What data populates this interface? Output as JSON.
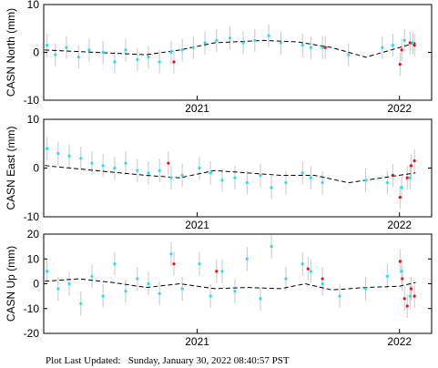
{
  "footer": {
    "label": "Plot Last Updated:",
    "timestamp": "Sunday, January 30, 2022 08:40:57 PST"
  },
  "style": {
    "point_color": "#22e0f0",
    "recent_color": "#e81010",
    "errorbar_color": "#c8c8c8",
    "trend_color": "#000000"
  },
  "chart_data": [
    {
      "type": "scatter",
      "ylabel": "CASN North (mm)",
      "xlim": [
        "2020-03-30",
        "2022-02-28"
      ],
      "ylim": [
        -10,
        10
      ],
      "yticks": [
        -10,
        0,
        10
      ],
      "xticks": [
        {
          "date": "2021-01-01",
          "label": "2021"
        },
        {
          "date": "2022-01-01",
          "label": "2022"
        }
      ],
      "grid": false,
      "trend": [
        [
          "2020-04-01",
          0.5
        ],
        [
          "2020-07-01",
          0.0
        ],
        [
          "2020-10-01",
          -0.5
        ],
        [
          "2020-12-01",
          0.5
        ],
        [
          "2021-02-01",
          2.0
        ],
        [
          "2021-05-01",
          2.5
        ],
        [
          "2021-07-01",
          2.2
        ],
        [
          "2021-09-01",
          1.0
        ],
        [
          "2021-11-01",
          -1.0
        ],
        [
          "2022-01-01",
          1.0
        ],
        [
          "2022-01-30",
          2.0
        ]
      ],
      "series_points": [
        [
          "2020-04-05",
          1.5
        ],
        [
          "2020-04-20",
          -0.5
        ],
        [
          "2020-05-10",
          1.0
        ],
        [
          "2020-06-01",
          -1.0
        ],
        [
          "2020-06-20",
          0.5
        ],
        [
          "2020-07-15",
          0.0
        ],
        [
          "2020-08-05",
          -2.0
        ],
        [
          "2020-08-25",
          0.5
        ],
        [
          "2020-09-15",
          -1.5
        ],
        [
          "2020-10-05",
          -1.0
        ],
        [
          "2020-10-25",
          -2.0
        ],
        [
          "2020-11-15",
          0.0
        ],
        [
          "2020-12-05",
          0.5
        ],
        [
          "2020-12-25",
          1.0
        ],
        [
          "2021-01-15",
          2.0
        ],
        [
          "2021-02-05",
          2.5
        ],
        [
          "2021-03-01",
          3.0
        ],
        [
          "2021-03-25",
          2.0
        ],
        [
          "2021-04-15",
          2.5
        ],
        [
          "2021-05-10",
          3.5
        ],
        [
          "2021-06-01",
          2.0
        ],
        [
          "2021-07-10",
          1.5
        ],
        [
          "2021-07-25",
          1.0
        ],
        [
          "2021-08-15",
          1.0
        ],
        [
          "2021-10-01",
          -0.5
        ],
        [
          "2021-12-01",
          1.0
        ],
        [
          "2021-12-20",
          1.5
        ],
        [
          "2022-01-10",
          2.5
        ],
        [
          "2022-01-25",
          2.0
        ]
      ],
      "recent_points": [
        [
          "2020-11-20",
          -2.0
        ],
        [
          "2021-08-20",
          1.0
        ],
        [
          "2022-01-02",
          -2.5
        ],
        [
          "2022-01-05",
          0.5
        ],
        [
          "2022-01-20",
          2.0
        ],
        [
          "2022-01-28",
          1.5
        ]
      ]
    },
    {
      "type": "scatter",
      "ylabel": "CASN East (mm)",
      "xlim": [
        "2020-03-30",
        "2022-02-28"
      ],
      "ylim": [
        -10,
        10
      ],
      "yticks": [
        -10,
        0,
        10
      ],
      "xticks": [
        {
          "date": "2021-01-01",
          "label": "2021"
        },
        {
          "date": "2022-01-01",
          "label": "2022"
        }
      ],
      "grid": false,
      "trend": [
        [
          "2020-04-01",
          0.5
        ],
        [
          "2020-07-01",
          -0.5
        ],
        [
          "2020-10-01",
          -1.5
        ],
        [
          "2020-12-01",
          -2.0
        ],
        [
          "2021-02-01",
          -0.5
        ],
        [
          "2021-04-01",
          -1.0
        ],
        [
          "2021-06-01",
          -1.5
        ],
        [
          "2021-08-01",
          -1.5
        ],
        [
          "2021-10-01",
          -3.0
        ],
        [
          "2021-12-01",
          -2.0
        ],
        [
          "2022-01-30",
          -1.0
        ]
      ],
      "series_points": [
        [
          "2020-04-05",
          4.0
        ],
        [
          "2020-04-25",
          3.0
        ],
        [
          "2020-05-15",
          2.5
        ],
        [
          "2020-06-05",
          2.0
        ],
        [
          "2020-06-25",
          1.0
        ],
        [
          "2020-07-15",
          0.5
        ],
        [
          "2020-08-05",
          0.0
        ],
        [
          "2020-08-25",
          1.0
        ],
        [
          "2020-09-15",
          -0.5
        ],
        [
          "2020-10-05",
          -1.0
        ],
        [
          "2020-10-25",
          -0.5
        ],
        [
          "2020-11-15",
          -2.0
        ],
        [
          "2020-12-05",
          -1.5
        ],
        [
          "2021-01-05",
          0.0
        ],
        [
          "2021-01-25",
          -1.0
        ],
        [
          "2021-02-15",
          -2.5
        ],
        [
          "2021-03-10",
          -2.0
        ],
        [
          "2021-04-01",
          -3.0
        ],
        [
          "2021-04-25",
          -1.5
        ],
        [
          "2021-05-15",
          -4.0
        ],
        [
          "2021-06-10",
          -3.0
        ],
        [
          "2021-07-10",
          -1.0
        ],
        [
          "2021-07-25",
          -2.0
        ],
        [
          "2021-08-15",
          -3.0
        ],
        [
          "2021-11-01",
          -2.5
        ],
        [
          "2021-12-10",
          -3.0
        ],
        [
          "2022-01-05",
          -4.0
        ],
        [
          "2022-01-20",
          -2.0
        ]
      ],
      "recent_points": [
        [
          "2020-11-10",
          1.0
        ],
        [
          "2021-12-20",
          -1.5
        ],
        [
          "2022-01-02",
          -6.0
        ],
        [
          "2022-01-15",
          -2.0
        ],
        [
          "2022-01-22",
          0.5
        ],
        [
          "2022-01-28",
          1.5
        ]
      ]
    },
    {
      "type": "scatter",
      "ylabel": "CASN Up (mm)",
      "xlim": [
        "2020-03-30",
        "2022-02-28"
      ],
      "ylim": [
        -20,
        20
      ],
      "yticks": [
        -20,
        -10,
        0,
        10,
        20
      ],
      "xticks": [
        {
          "date": "2021-01-01",
          "label": "2021"
        },
        {
          "date": "2022-01-01",
          "label": "2022"
        }
      ],
      "grid": false,
      "trend": [
        [
          "2020-04-01",
          1.0
        ],
        [
          "2020-06-01",
          2.0
        ],
        [
          "2020-08-01",
          0.5
        ],
        [
          "2020-10-01",
          -1.5
        ],
        [
          "2020-12-01",
          0.0
        ],
        [
          "2021-02-01",
          -2.0
        ],
        [
          "2021-04-01",
          -1.5
        ],
        [
          "2021-06-01",
          -2.0
        ],
        [
          "2021-07-15",
          0.0
        ],
        [
          "2021-09-01",
          -2.5
        ],
        [
          "2021-11-01",
          -1.5
        ],
        [
          "2022-01-01",
          -1.0
        ],
        [
          "2022-01-30",
          0.5
        ]
      ],
      "series_points": [
        [
          "2020-04-05",
          5.0
        ],
        [
          "2020-04-25",
          -2.0
        ],
        [
          "2020-05-15",
          0.0
        ],
        [
          "2020-06-05",
          -8.0
        ],
        [
          "2020-06-25",
          3.0
        ],
        [
          "2020-07-15",
          -5.0
        ],
        [
          "2020-08-05",
          8.0
        ],
        [
          "2020-08-25",
          -3.0
        ],
        [
          "2020-09-15",
          2.0
        ],
        [
          "2020-10-05",
          0.0
        ],
        [
          "2020-10-25",
          -4.0
        ],
        [
          "2020-11-15",
          12.0
        ],
        [
          "2020-12-05",
          -2.0
        ],
        [
          "2021-01-05",
          8.0
        ],
        [
          "2021-01-25",
          -5.0
        ],
        [
          "2021-02-15",
          5.0
        ],
        [
          "2021-03-10",
          -3.0
        ],
        [
          "2021-04-01",
          10.0
        ],
        [
          "2021-04-25",
          -6.0
        ],
        [
          "2021-05-15",
          15.0
        ],
        [
          "2021-06-10",
          2.0
        ],
        [
          "2021-07-10",
          8.0
        ],
        [
          "2021-07-25",
          5.0
        ],
        [
          "2021-08-15",
          0.0
        ],
        [
          "2021-09-15",
          -5.0
        ],
        [
          "2021-11-01",
          -2.0
        ],
        [
          "2021-12-10",
          3.0
        ],
        [
          "2022-01-05",
          5.0
        ],
        [
          "2022-01-20",
          -5.0
        ]
      ],
      "recent_points": [
        [
          "2020-11-20",
          8.0
        ],
        [
          "2021-02-05",
          5.0
        ],
        [
          "2021-07-20",
          6.0
        ],
        [
          "2021-08-15",
          2.0
        ],
        [
          "2022-01-02",
          9.0
        ],
        [
          "2022-01-06",
          2.0
        ],
        [
          "2022-01-10",
          -6.0
        ],
        [
          "2022-01-15",
          -9.0
        ],
        [
          "2022-01-22",
          -2.0
        ],
        [
          "2022-01-28",
          -5.0
        ]
      ]
    }
  ]
}
